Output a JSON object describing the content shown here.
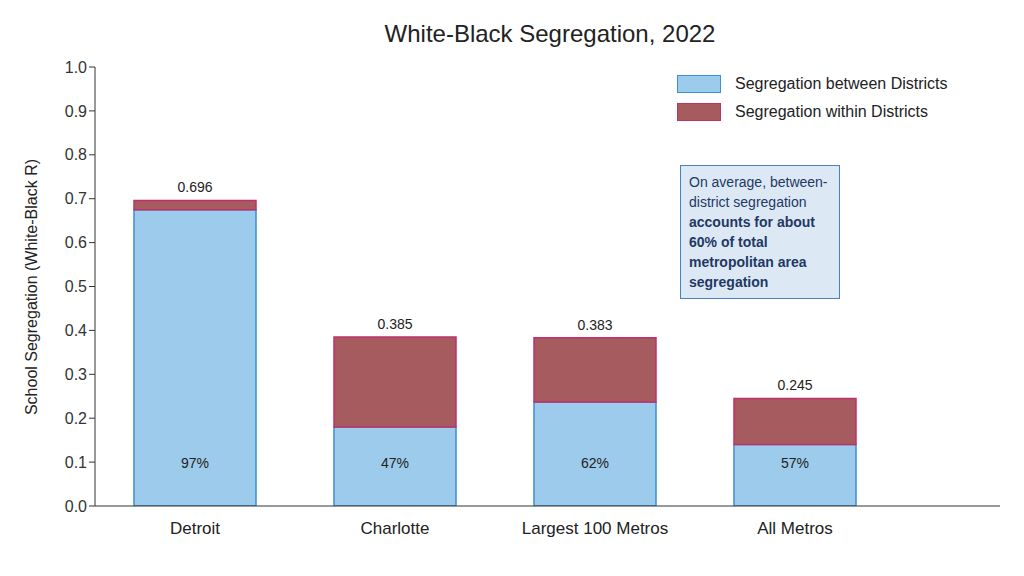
{
  "chart_data": {
    "type": "bar",
    "title": "White-Black Segregation, 2022",
    "y_label": "School Segregation (White-Black R)",
    "categories": [
      "Detroit",
      "Charlotte",
      "Largest 100 Metros",
      "All Metros"
    ],
    "series": [
      {
        "name": "Segregation between Districts",
        "color": "#9dcbeb",
        "values": [
          0.675,
          0.18,
          0.237,
          0.14
        ],
        "share_labels": [
          "97%",
          "47%",
          "62%",
          "57%"
        ]
      },
      {
        "name": "Segregation within Districts",
        "color": "#a65b5f",
        "values": [
          0.021,
          0.205,
          0.146,
          0.105
        ]
      }
    ],
    "totals": [
      0.696,
      0.385,
      0.383,
      0.245
    ],
    "stacked": true,
    "ylim": [
      0,
      1
    ],
    "yticks": [
      {
        "value": 0,
        "label": "0.0"
      },
      0.1,
      0.2,
      0.3,
      0.4,
      0.5,
      0.6,
      0.7,
      0.8,
      0.9,
      {
        "value": 1,
        "label": "1.0"
      }
    ],
    "grid": false,
    "legend": "upper right",
    "annotation": {
      "text": "On average, between-district segregation",
      "bold": "accounts for about 60% of total metropolitan area segregation"
    }
  }
}
